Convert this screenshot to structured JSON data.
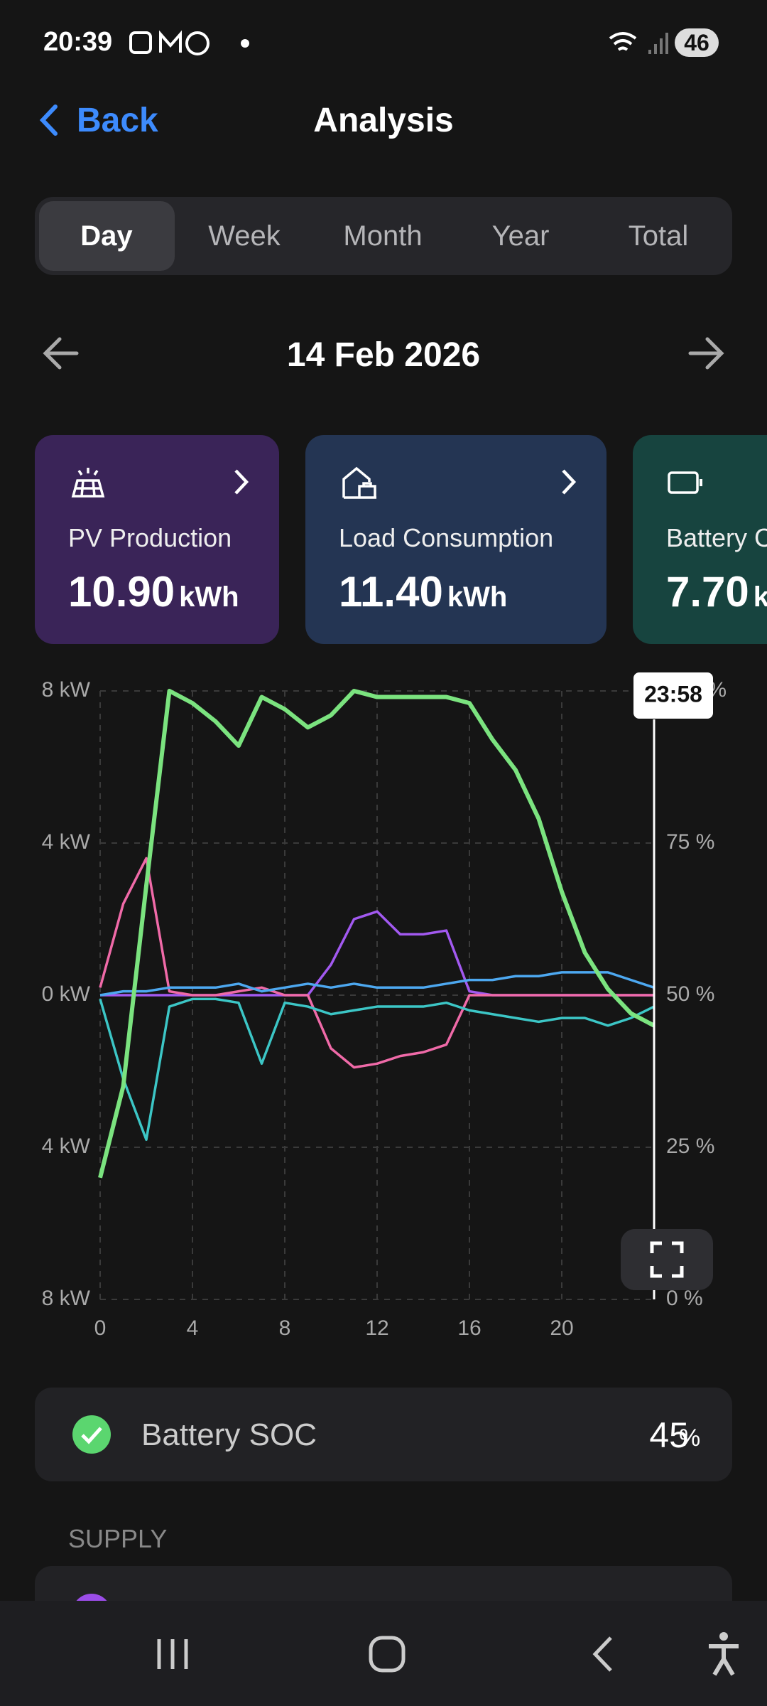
{
  "status_bar": {
    "time": "20:39",
    "battery": "46"
  },
  "header": {
    "back": "Back",
    "title": "Analysis"
  },
  "tabs": [
    "Day",
    "Week",
    "Month",
    "Year",
    "Total"
  ],
  "date": "14 Feb 2026",
  "cards": [
    {
      "title": "PV Production",
      "value": "10.90",
      "unit": "kWh"
    },
    {
      "title": "Load Consumption",
      "value": "11.40",
      "unit": "kWh"
    },
    {
      "title": "Battery Charge",
      "value": "7.70",
      "unit": "kWh"
    }
  ],
  "chart_data": {
    "type": "line",
    "x": [
      0,
      1,
      2,
      3,
      4,
      5,
      6,
      7,
      8,
      9,
      10,
      11,
      12,
      13,
      14,
      15,
      16,
      17,
      18,
      19,
      20,
      21,
      22,
      23,
      24
    ],
    "xlim": [
      0,
      24
    ],
    "xticks": [
      0,
      4,
      8,
      12,
      16,
      20
    ],
    "ylim": [
      -8,
      8
    ],
    "yticks": [
      {
        "value": 8,
        "label": "8 kW"
      },
      {
        "value": 4,
        "label": "4 kW"
      },
      {
        "value": 0,
        "label": "0 kW"
      },
      {
        "value": -4,
        "label": "4 kW"
      },
      {
        "value": -8,
        "label": "8 kW"
      }
    ],
    "y2lim": [
      0,
      100
    ],
    "y2ticks": [
      {
        "value": 0,
        "label": "0 %"
      },
      {
        "value": 25,
        "label": "25 %"
      },
      {
        "value": 50,
        "label": "50 %"
      },
      {
        "value": 75,
        "label": "75 %"
      },
      {
        "value": 100,
        "label": "100 %"
      }
    ],
    "grid": true,
    "cursor_label": "23:58",
    "series": [
      {
        "color": "#a259f0",
        "values": [
          0,
          0,
          0,
          0,
          0,
          0,
          0,
          0,
          0,
          0,
          0.8,
          2.0,
          2.2,
          1.6,
          1.6,
          1.7,
          0.1,
          0,
          0,
          0,
          0,
          0,
          0,
          0,
          0
        ]
      },
      {
        "color": "#f06aa8",
        "values": [
          0.2,
          2.4,
          3.6,
          0.1,
          0,
          0,
          0.1,
          0.2,
          0,
          0,
          -1.4,
          -1.9,
          -1.8,
          -1.6,
          -1.5,
          -1.3,
          0,
          0,
          0,
          0,
          0,
          0,
          0,
          0,
          0
        ]
      },
      {
        "color": "#3cc6c6",
        "values": [
          -0.1,
          -2.2,
          -3.8,
          -0.3,
          -0.1,
          -0.1,
          -0.2,
          -1.8,
          -0.2,
          -0.3,
          -0.5,
          -0.4,
          -0.3,
          -0.3,
          -0.3,
          -0.2,
          -0.4,
          -0.5,
          -0.6,
          -0.7,
          -0.6,
          -0.6,
          -0.8,
          -0.6,
          -0.3
        ]
      },
      {
        "color": "#4da8f0",
        "values": [
          0,
          0.1,
          0.1,
          0.2,
          0.2,
          0.2,
          0.3,
          0.1,
          0.2,
          0.3,
          0.2,
          0.3,
          0.2,
          0.2,
          0.2,
          0.3,
          0.4,
          0.4,
          0.5,
          0.5,
          0.6,
          0.6,
          0.6,
          0.4,
          0.2
        ]
      },
      {
        "color": "#7be37f",
        "axis": "y2",
        "values": [
          20,
          35,
          68,
          100,
          98,
          95,
          91,
          99,
          97,
          94,
          96,
          100,
          99,
          99,
          99,
          99,
          98,
          92,
          87,
          79,
          67,
          57,
          51,
          47,
          45
        ]
      }
    ]
  },
  "soc": {
    "label": "Battery SOC",
    "value": 45,
    "unit": "%"
  },
  "section": "SUPPLY"
}
